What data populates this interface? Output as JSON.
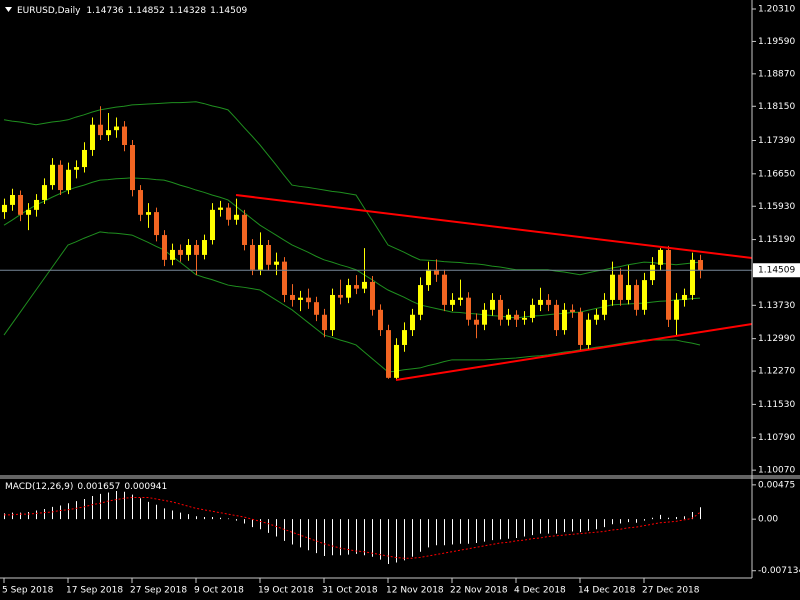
{
  "chart_data": [
    {
      "type": "candlestick",
      "title": "EURUSD,Daily",
      "categories": [
        "5 Sep 2018",
        null,
        null,
        null,
        null,
        null,
        null,
        null,
        "17 Sep 2018",
        null,
        null,
        null,
        null,
        null,
        null,
        null,
        "27 Sep 2018",
        null,
        null,
        null,
        null,
        null,
        null,
        null,
        "9 Oct 2018",
        null,
        null,
        null,
        null,
        null,
        null,
        null,
        "19 Oct 2018",
        null,
        null,
        null,
        null,
        null,
        null,
        null,
        "31 Oct 2018",
        null,
        null,
        null,
        null,
        null,
        null,
        null,
        "12 Nov 2018",
        null,
        null,
        null,
        null,
        null,
        null,
        null,
        "22 Nov 2018",
        null,
        null,
        null,
        null,
        null,
        null,
        null,
        "4 Dec 2018",
        null,
        null,
        null,
        null,
        null,
        null,
        null,
        "14 Dec 2018",
        null,
        null,
        null,
        null,
        null,
        null,
        null,
        "27 Dec 2018",
        null,
        null,
        null,
        null,
        null,
        null,
        null
      ],
      "open": [
        1.158,
        1.1596,
        1.1618,
        1.1574,
        1.1585,
        1.1607,
        1.164,
        1.1685,
        1.1629,
        1.1674,
        1.168,
        1.1718,
        1.1774,
        1.1751,
        1.1762,
        1.177,
        1.1729,
        1.1629,
        1.1574,
        1.158,
        1.1529,
        1.1474,
        1.1496,
        1.1485,
        1.1507,
        1.1485,
        1.1518,
        1.1585,
        1.159,
        1.1563,
        1.1574,
        1.1507,
        1.1452,
        1.1507,
        1.1463,
        1.147,
        1.1396,
        1.1385,
        1.139,
        1.138,
        1.1352,
        1.1318,
        1.1396,
        1.139,
        1.1418,
        1.141,
        1.1425,
        1.1363,
        1.1318,
        1.1212,
        1.1285,
        1.1318,
        1.1352,
        1.1418,
        1.1452,
        1.1441,
        1.1374,
        1.1385,
        1.139,
        1.1341,
        1.133,
        1.1363,
        1.1385,
        1.1341,
        1.1352,
        1.1341,
        1.1345,
        1.1374,
        1.1385,
        1.1374,
        1.1318,
        1.1363,
        1.1358,
        1.1285,
        1.1341,
        1.1352,
        1.1385,
        1.1441,
        1.1385,
        1.1418,
        1.1363,
        1.1429,
        1.1463,
        1.1496,
        1.1341,
        1.1385,
        1.1396,
        1.14736
      ],
      "high": [
        1.161,
        1.1632,
        1.1628,
        1.16,
        1.162,
        1.1655,
        1.17,
        1.1695,
        1.169,
        1.1695,
        1.1735,
        1.179,
        1.1815,
        1.18,
        1.179,
        1.1782,
        1.174,
        1.164,
        1.16,
        1.159,
        1.154,
        1.151,
        1.1508,
        1.152,
        1.1518,
        1.153,
        1.16,
        1.1605,
        1.16,
        1.161,
        1.1585,
        1.152,
        1.1535,
        1.1518,
        1.149,
        1.148,
        1.142,
        1.1405,
        1.141,
        1.1392,
        1.1365,
        1.141,
        1.143,
        1.1432,
        1.144,
        1.15,
        1.1438,
        1.1375,
        1.133,
        1.13,
        1.1335,
        1.1365,
        1.1435,
        1.147,
        1.1475,
        1.1452,
        1.14,
        1.143,
        1.1402,
        1.1355,
        1.1378,
        1.14,
        1.1396,
        1.1365,
        1.1362,
        1.136,
        1.1388,
        1.1412,
        1.1398,
        1.1385,
        1.1378,
        1.1375,
        1.1368,
        1.1355,
        1.1365,
        1.14,
        1.147,
        1.1455,
        1.1462,
        1.143,
        1.1445,
        1.148,
        1.15,
        1.1505,
        1.14,
        1.141,
        1.149,
        1.14852
      ],
      "low": [
        1.1565,
        1.1583,
        1.156,
        1.154,
        1.157,
        1.1598,
        1.163,
        1.1618,
        1.162,
        1.1655,
        1.1668,
        1.1705,
        1.174,
        1.1738,
        1.1745,
        1.1715,
        1.1615,
        1.156,
        1.1545,
        1.1515,
        1.146,
        1.1462,
        1.147,
        1.1472,
        1.144,
        1.1475,
        1.1508,
        1.157,
        1.155,
        1.1552,
        1.1495,
        1.144,
        1.144,
        1.145,
        1.144,
        1.138,
        1.137,
        1.136,
        1.1365,
        1.1338,
        1.1302,
        1.1305,
        1.1375,
        1.1378,
        1.1398,
        1.14,
        1.135,
        1.1305,
        1.121,
        1.1208,
        1.127,
        1.1305,
        1.134,
        1.1405,
        1.1425,
        1.136,
        1.136,
        1.1372,
        1.1328,
        1.13,
        1.1318,
        1.135,
        1.1328,
        1.1328,
        1.1325,
        1.133,
        1.1335,
        1.136,
        1.136,
        1.1305,
        1.1308,
        1.1345,
        1.127,
        1.1275,
        1.133,
        1.134,
        1.1372,
        1.1372,
        1.1375,
        1.135,
        1.1352,
        1.1418,
        1.145,
        1.1325,
        1.1305,
        1.137,
        1.1385,
        1.14328
      ],
      "close": [
        1.1596,
        1.1618,
        1.1574,
        1.1585,
        1.1607,
        1.164,
        1.1685,
        1.1629,
        1.1674,
        1.168,
        1.1718,
        1.1774,
        1.1751,
        1.1762,
        1.177,
        1.1729,
        1.1629,
        1.1574,
        1.158,
        1.1529,
        1.1474,
        1.1496,
        1.1485,
        1.1507,
        1.1485,
        1.1518,
        1.1585,
        1.159,
        1.1563,
        1.1574,
        1.1507,
        1.1452,
        1.1507,
        1.1463,
        1.147,
        1.1396,
        1.1385,
        1.139,
        1.138,
        1.1352,
        1.1318,
        1.1396,
        1.139,
        1.1418,
        1.141,
        1.1425,
        1.1363,
        1.1318,
        1.1212,
        1.1285,
        1.1318,
        1.1352,
        1.1418,
        1.1452,
        1.1441,
        1.1374,
        1.1385,
        1.139,
        1.1341,
        1.133,
        1.1363,
        1.1385,
        1.1341,
        1.1352,
        1.1341,
        1.1345,
        1.1374,
        1.1385,
        1.1374,
        1.1318,
        1.1363,
        1.1358,
        1.1285,
        1.1341,
        1.1352,
        1.1385,
        1.1441,
        1.1385,
        1.1418,
        1.1363,
        1.1429,
        1.1463,
        1.1496,
        1.1341,
        1.1385,
        1.1396,
        1.1474,
        1.14509
      ],
      "up_color": "#ffff00",
      "down_color": "#f26522",
      "price_line_color": "#778899",
      "bands": [
        {
          "color": "#1f8f1f",
          "values": [
            1.1785,
            1.1782,
            1.178,
            1.1777,
            1.1774,
            1.1777,
            1.178,
            1.1782,
            1.1785,
            1.1791,
            1.1796,
            1.1802,
            1.1807,
            1.181,
            1.1813,
            1.1815,
            1.1818,
            1.1819,
            1.182,
            1.1821,
            1.1822,
            1.1823,
            1.1823,
            1.1824,
            1.1825,
            1.1821,
            1.1816,
            1.1812,
            1.1807,
            1.1788,
            1.1768,
            1.1749,
            1.1729,
            1.1707,
            1.1685,
            1.1662,
            1.164,
            1.1637,
            1.1635,
            1.1632,
            1.1629,
            1.1626,
            1.1624,
            1.1621,
            1.1618,
            1.159,
            1.1563,
            1.1535,
            1.1507,
            1.1499,
            1.1491,
            1.1482,
            1.1474,
            1.1473,
            1.1472,
            1.147,
            1.1469,
            1.1468,
            1.1466,
            1.1465,
            1.1463,
            1.146,
            1.1458,
            1.1455,
            1.1452,
            1.1452,
            1.1452,
            1.1452,
            1.1452,
            1.1449,
            1.1447,
            1.1444,
            1.1441,
            1.1445,
            1.1449,
            1.1452,
            1.1456,
            1.1459,
            1.1463,
            1.1466,
            1.1469,
            1.1468,
            1.1466,
            1.1465,
            1.1463,
            1.1465,
            1.1467,
            1.1469
          ]
        },
        {
          "color": "#1f8f1f",
          "values": [
            1.1551,
            1.1562,
            1.1574,
            1.1585,
            1.1596,
            1.1604,
            1.1613,
            1.1621,
            1.1629,
            1.1635,
            1.164,
            1.1646,
            1.1651,
            1.1652,
            1.1654,
            1.1655,
            1.1656,
            1.1655,
            1.1654,
            1.1652,
            1.1651,
            1.1646,
            1.164,
            1.1635,
            1.1629,
            1.1624,
            1.1618,
            1.1613,
            1.1607,
            1.1593,
            1.1579,
            1.1565,
            1.1551,
            1.154,
            1.1529,
            1.1518,
            1.1507,
            1.1499,
            1.1491,
            1.1482,
            1.1474,
            1.1469,
            1.1463,
            1.1458,
            1.1452,
            1.1441,
            1.143,
            1.1418,
            1.1407,
            1.1399,
            1.1391,
            1.1382,
            1.1374,
            1.137,
            1.1366,
            1.1362,
            1.1358,
            1.1357,
            1.1355,
            1.1354,
            1.1352,
            1.135,
            1.1349,
            1.1347,
            1.1345,
            1.1347,
            1.1349,
            1.135,
            1.1352,
            1.1354,
            1.1355,
            1.1357,
            1.1358,
            1.1362,
            1.1366,
            1.137,
            1.1374,
            1.1375,
            1.1376,
            1.1377,
            1.1378,
            1.138,
            1.1382,
            1.1383,
            1.1385,
            1.1386,
            1.1388,
            1.1389
          ]
        },
        {
          "color": "#1f8f1f",
          "values": [
            1.1307,
            1.1332,
            1.1357,
            1.1382,
            1.1407,
            1.1432,
            1.1457,
            1.1482,
            1.1507,
            1.1514,
            1.1522,
            1.1529,
            1.1536,
            1.1534,
            1.1533,
            1.1531,
            1.1529,
            1.1521,
            1.1513,
            1.1504,
            1.1496,
            1.1482,
            1.1469,
            1.1455,
            1.1441,
            1.1435,
            1.143,
            1.1424,
            1.1418,
            1.1415,
            1.1413,
            1.141,
            1.1407,
            1.1396,
            1.1385,
            1.1374,
            1.1363,
            1.1349,
            1.1335,
            1.1321,
            1.1307,
            1.1302,
            1.1296,
            1.1291,
            1.1285,
            1.127,
            1.1255,
            1.124,
            1.1225,
            1.1227,
            1.123,
            1.1232,
            1.1234,
            1.1239,
            1.1243,
            1.1248,
            1.1252,
            1.1252,
            1.1252,
            1.1252,
            1.1252,
            1.1253,
            1.1254,
            1.1255,
            1.1256,
            1.1258,
            1.126,
            1.1261,
            1.1263,
            1.1266,
            1.1269,
            1.1271,
            1.1274,
            1.1277,
            1.128,
            1.1282,
            1.1285,
            1.1288,
            1.1291,
            1.1293,
            1.1296,
            1.1296,
            1.1296,
            1.1296,
            1.1296,
            1.1292,
            1.1289,
            1.1285
          ]
        }
      ],
      "ylim": [
        1.0994,
        1.2051
      ],
      "yticks": [
        {
          "value": 1.2031,
          "label": "1.20310"
        },
        {
          "value": 1.1959,
          "label": "1.19590"
        },
        {
          "value": 1.1887,
          "label": "1.18870"
        },
        {
          "value": 1.1815,
          "label": "1.18150"
        },
        {
          "value": 1.1739,
          "label": "1.17390"
        },
        {
          "value": 1.1665,
          "label": "1.16650"
        },
        {
          "value": 1.1593,
          "label": "1.15930"
        },
        {
          "value": 1.1519,
          "label": "1.15190"
        },
        {
          "value": 1.1373,
          "label": "1.13730"
        },
        {
          "value": 1.1299,
          "label": "1.12990"
        },
        {
          "value": 1.1227,
          "label": "1.12270"
        },
        {
          "value": 1.1153,
          "label": "1.11530"
        },
        {
          "value": 1.1079,
          "label": "1.10790"
        },
        {
          "value": 1.1007,
          "label": "1.10070"
        }
      ]
    },
    {
      "type": "macd",
      "title": "MACD(12,26,9)",
      "series": [
        {
          "color": "#ffffff",
          "values": [
            0.0008,
            0.0009,
            0.0009,
            0.001,
            0.0012,
            0.0014,
            0.0017,
            0.0019,
            0.0022,
            0.0025,
            0.0028,
            0.0032,
            0.0035,
            0.0037,
            0.0039,
            0.0038,
            0.0034,
            0.0029,
            0.0024,
            0.002,
            0.0015,
            0.0012,
            0.0009,
            0.0007,
            0.0004,
            0.0003,
            0.0003,
            0.0002,
            0.0001,
            -0.0002,
            -0.0006,
            -0.0011,
            -0.0014,
            -0.0019,
            -0.0024,
            -0.003,
            -0.0035,
            -0.0039,
            -0.0043,
            -0.0047,
            -0.0051,
            -0.005,
            -0.005,
            -0.0049,
            -0.0048,
            -0.005,
            -0.0052,
            -0.0056,
            -0.0062,
            -0.006,
            -0.0057,
            -0.0052,
            -0.0045,
            -0.0039,
            -0.0036,
            -0.0036,
            -0.0035,
            -0.0034,
            -0.0034,
            -0.0033,
            -0.0031,
            -0.0029,
            -0.0028,
            -0.0027,
            -0.0026,
            -0.0024,
            -0.0022,
            -0.002,
            -0.002,
            -0.002,
            -0.0018,
            -0.0017,
            -0.0018,
            -0.0016,
            -0.0014,
            -0.0011,
            -0.0007,
            -0.0006,
            -0.0004,
            -0.0005,
            -0.0002,
            0.0002,
            0.0006,
            0.0002,
            0.0003,
            0.0004,
            0.001,
            0.001657
          ]
        },
        {
          "color": "#ff0000",
          "values": [
            0.0006,
            0.0006,
            0.0007,
            0.0007,
            0.0008,
            0.0009,
            0.001,
            0.0012,
            0.0013,
            0.0015,
            0.0017,
            0.002,
            0.0022,
            0.0025,
            0.0027,
            0.0029,
            0.003,
            0.003,
            0.003,
            0.0028,
            0.0026,
            0.0024,
            0.0021,
            0.0018,
            0.0015,
            0.0013,
            0.0011,
            0.0009,
            0.0007,
            0.0005,
            0.0003,
            0.0,
            -0.0003,
            -0.0006,
            -0.001,
            -0.0014,
            -0.0018,
            -0.0022,
            -0.0026,
            -0.003,
            -0.0034,
            -0.0037,
            -0.004,
            -0.0042,
            -0.0044,
            -0.0045,
            -0.0047,
            -0.0049,
            -0.0051,
            -0.0053,
            -0.0054,
            -0.0054,
            -0.0053,
            -0.0051,
            -0.0049,
            -0.0047,
            -0.0045,
            -0.0043,
            -0.0041,
            -0.0039,
            -0.0037,
            -0.0035,
            -0.0033,
            -0.0032,
            -0.003,
            -0.0029,
            -0.0027,
            -0.0026,
            -0.0024,
            -0.0023,
            -0.0022,
            -0.0021,
            -0.002,
            -0.0019,
            -0.0018,
            -0.0017,
            -0.0015,
            -0.0014,
            -0.0012,
            -0.0011,
            -0.0009,
            -0.0007,
            -0.0005,
            -0.0004,
            -0.0003,
            -0.0001,
            0.0001,
            0.000941
          ]
        }
      ],
      "ylim": [
        -0.00814,
        0.00556
      ],
      "yticks": [
        0.00475,
        {
          "value": 0,
          "label": "0.00"
        },
        -0.007134
      ]
    }
  ]
}
